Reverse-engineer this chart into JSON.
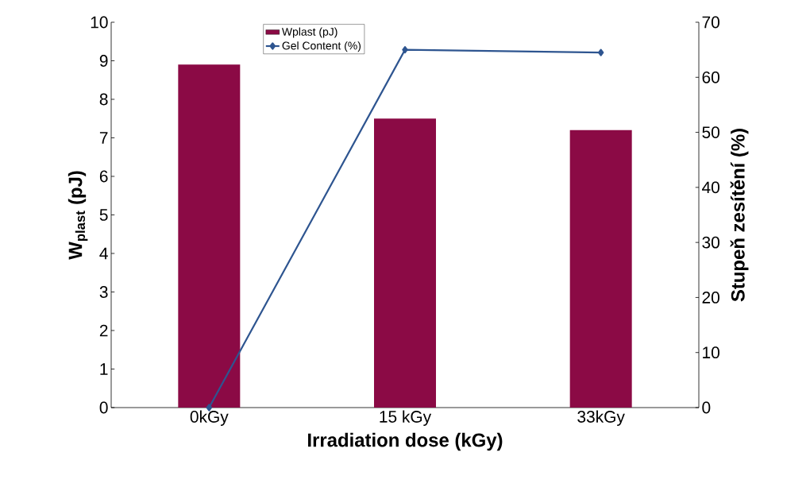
{
  "chart_data": {
    "type": "bar",
    "categories": [
      "0kGy",
      "15 kGy",
      "33kGy"
    ],
    "series": [
      {
        "name": "Wplast (pJ)",
        "color": "#8b0a45",
        "values": [
          8.9,
          7.5,
          7.2
        ]
      },
      {
        "name": "Gel Content (%)",
        "type": "line",
        "axis": "y2",
        "color": "#2e5590",
        "values": [
          0,
          65,
          64.5
        ]
      }
    ],
    "xlabel": "Irradiation dose (kGy)",
    "ylabel": "**W$_{plast}$ (pJ)**",
    "y2label": "Stupeň zesítění (%)",
    "ylim": [
      0,
      10
    ],
    "yticks": [
      0,
      1,
      2,
      3,
      4,
      5,
      6,
      7,
      8,
      9,
      10
    ],
    "y2lim": [
      0,
      70
    ],
    "y2ticks": [
      0,
      10,
      20,
      30,
      40,
      50,
      60,
      70
    ],
    "marker": "diamond",
    "legend": "top"
  }
}
